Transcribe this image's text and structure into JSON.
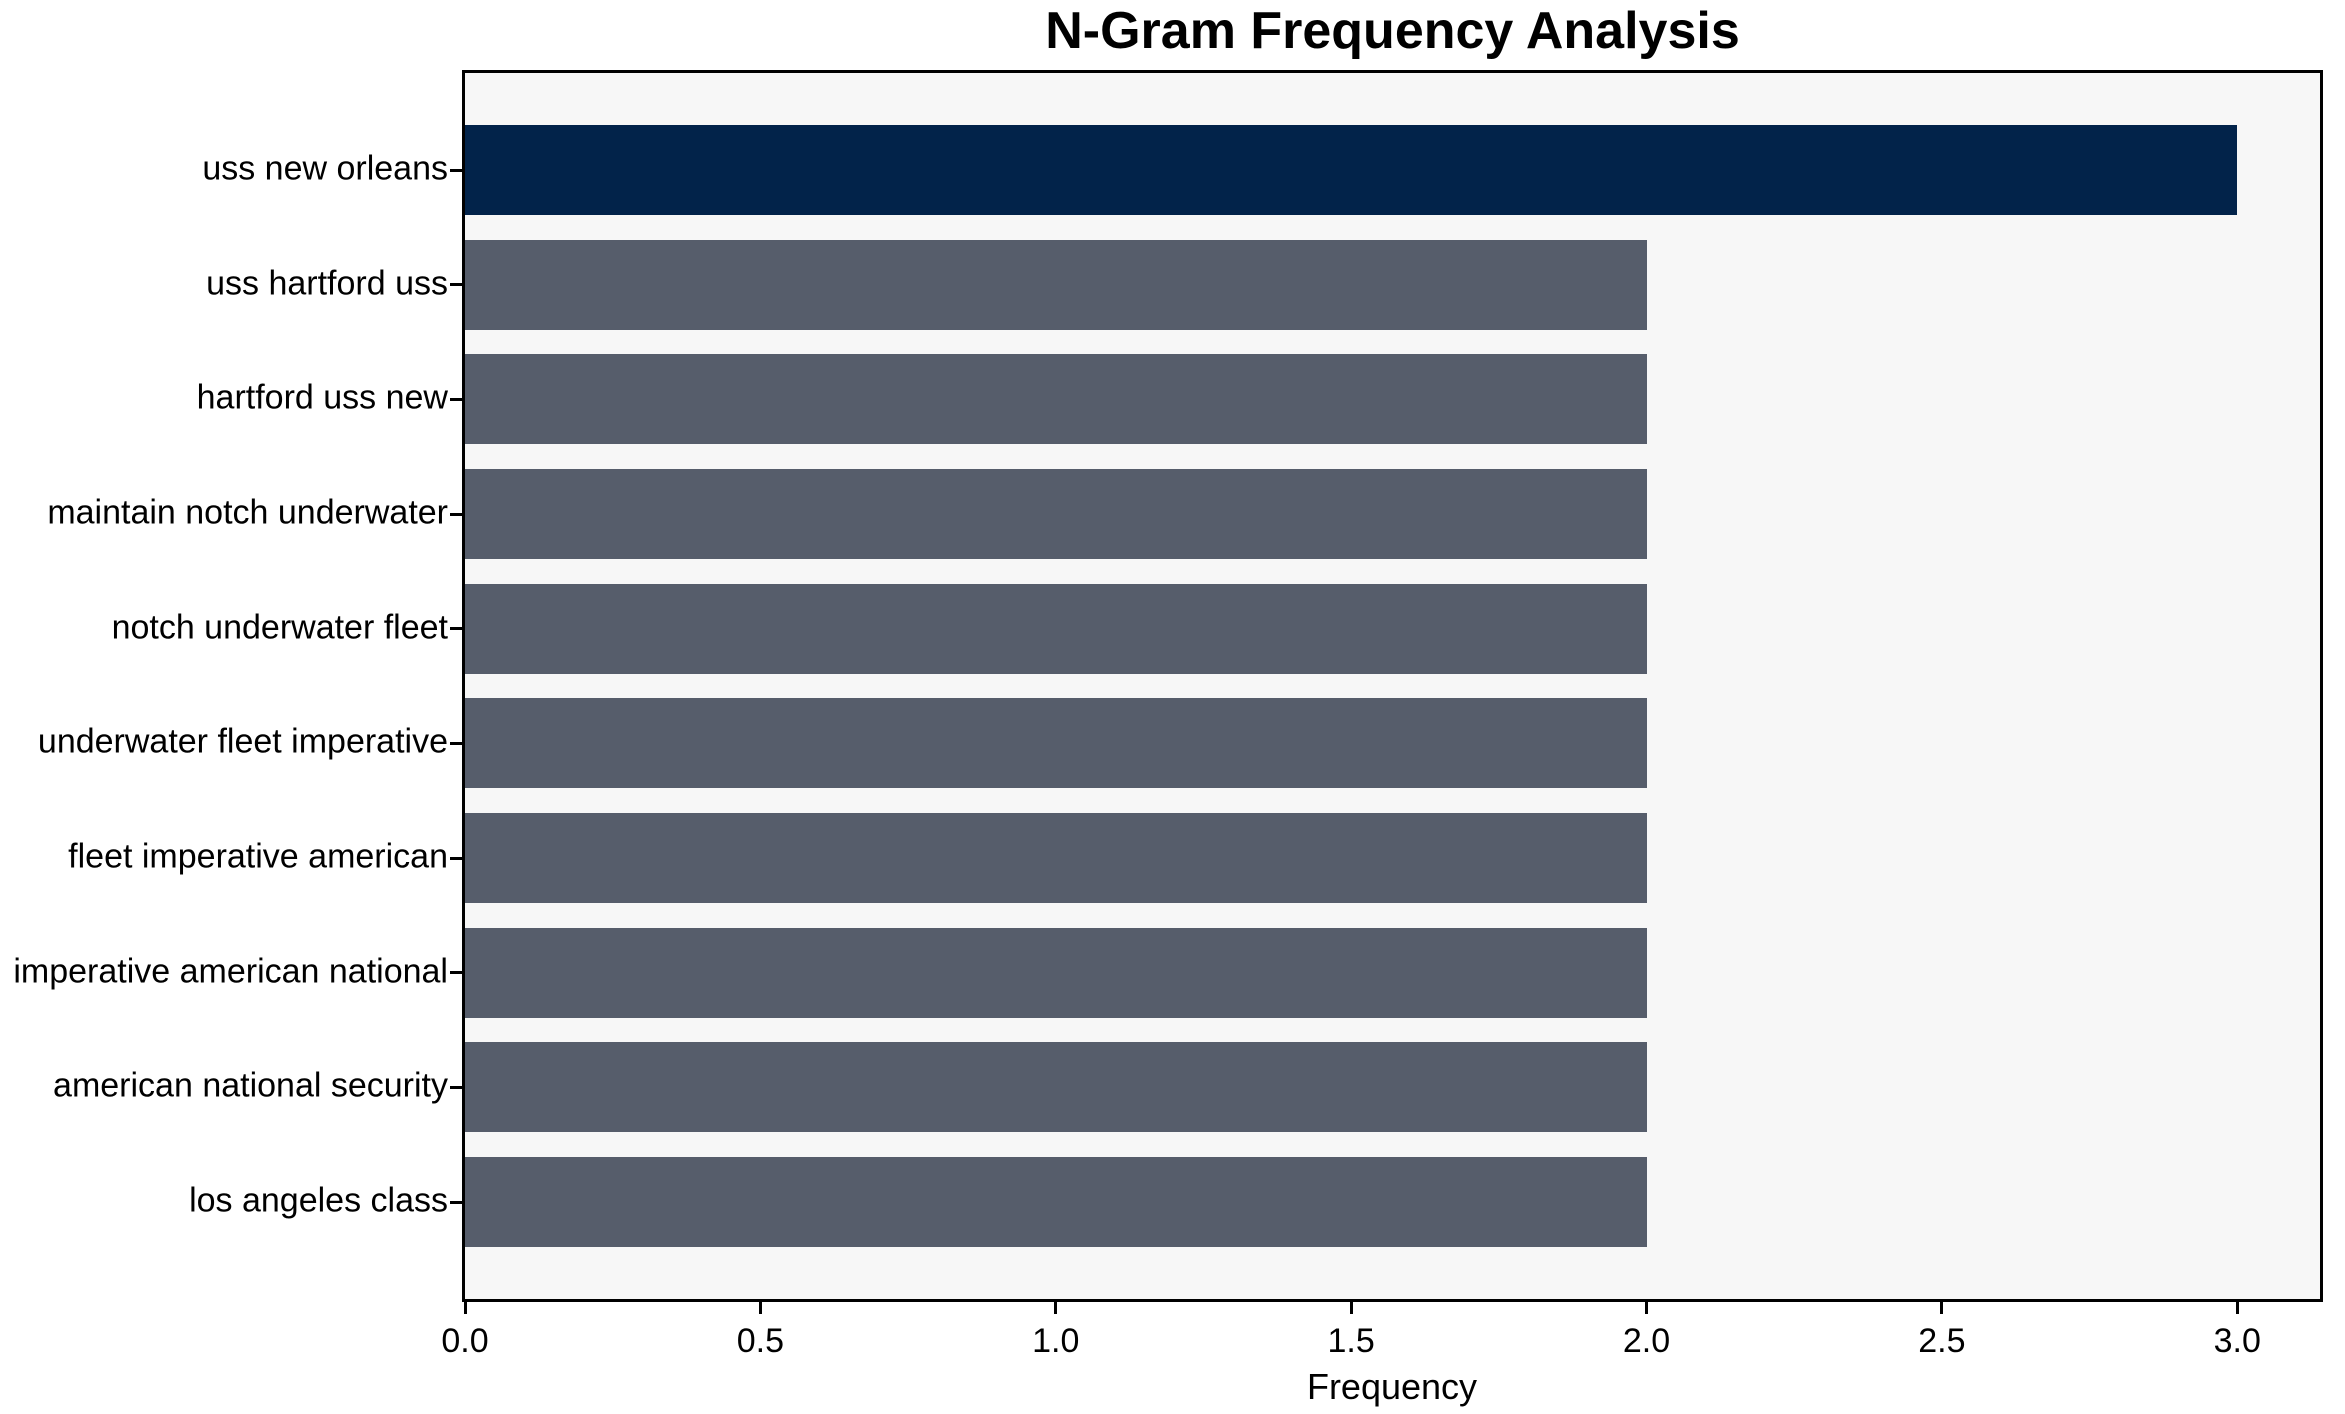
{
  "chart_data": {
    "type": "bar",
    "orientation": "horizontal",
    "title": "N-Gram Frequency Analysis",
    "xlabel": "Frequency",
    "ylabel": "",
    "categories": [
      "uss new orleans",
      "uss hartford uss",
      "hartford uss new",
      "maintain notch underwater",
      "notch underwater fleet",
      "underwater fleet imperative",
      "fleet imperative american",
      "imperative american national",
      "american national security",
      "los angeles class"
    ],
    "values": [
      3,
      2,
      2,
      2,
      2,
      2,
      2,
      2,
      2,
      2
    ],
    "xlim": [
      0,
      3.14
    ],
    "xticks": [
      0.0,
      0.5,
      1.0,
      1.5,
      2.0,
      2.5,
      3.0
    ],
    "xtick_labels": [
      "0.0",
      "0.5",
      "1.0",
      "1.5",
      "2.0",
      "2.5",
      "3.0"
    ],
    "legend": null,
    "grid": false,
    "colors": {
      "bar_highlight": "#02234a",
      "bar_default": "#565d6b",
      "plot_background": "#f7f7f7",
      "figure_background": "#ffffff",
      "spine": "#000000",
      "text": "#000000"
    }
  }
}
